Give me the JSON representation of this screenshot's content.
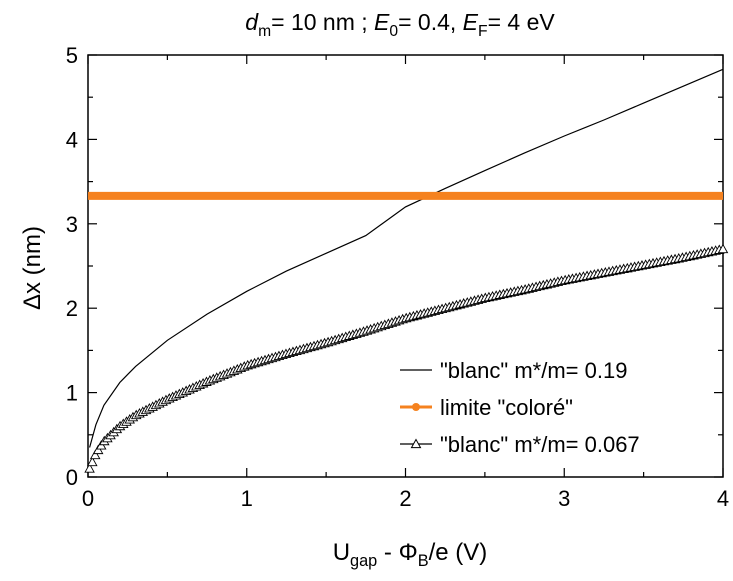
{
  "chart_data": {
    "type": "line",
    "title": {
      "parts": [
        {
          "text": "d",
          "style": "italic"
        },
        {
          "text": "m",
          "style": "sub"
        },
        {
          "text": "= 10 nm ;  ",
          "style": "normal"
        },
        {
          "text": "E",
          "style": "italic"
        },
        {
          "text": "0",
          "style": "sub"
        },
        {
          "text": "= 0.4, ",
          "style": "normal"
        },
        {
          "text": "E",
          "style": "italic"
        },
        {
          "text": "F",
          "style": "sub"
        },
        {
          "text": "= 4 eV",
          "style": "normal"
        }
      ]
    },
    "xlabel": {
      "parts": [
        {
          "text": "U",
          "style": "normal"
        },
        {
          "text": "gap",
          "style": "sub"
        },
        {
          "text": " - Φ",
          "style": "normal"
        },
        {
          "text": "B",
          "style": "sub"
        },
        {
          "text": "/e   (V)",
          "style": "normal"
        }
      ]
    },
    "ylabel": "Δx (nm)",
    "xlim": [
      0,
      4
    ],
    "ylim": [
      0,
      5
    ],
    "xticks": [
      "0",
      "1",
      "2",
      "3",
      "4"
    ],
    "yticks": [
      "0",
      "1",
      "2",
      "3",
      "4",
      "5"
    ],
    "grid": false,
    "legend_position": "bottom-right",
    "series": [
      {
        "name": "\"blanc\" m*/m= 0.19",
        "style": "thin-line",
        "color": "#000000",
        "x": [
          0.01,
          0.05,
          0.1,
          0.2,
          0.3,
          0.5,
          0.75,
          1.0,
          1.25,
          1.5,
          1.75,
          2.0,
          2.25,
          2.5,
          2.75,
          3.0,
          3.25,
          3.5,
          3.75,
          4.0
        ],
        "y": [
          0.35,
          0.62,
          0.85,
          1.12,
          1.31,
          1.62,
          1.93,
          2.2,
          2.44,
          2.65,
          2.86,
          3.2,
          3.42,
          3.63,
          3.84,
          4.04,
          4.23,
          4.43,
          4.63,
          4.83
        ]
      },
      {
        "name": "limite \"coloré\"",
        "style": "thick-line-circle-marker",
        "color": "#f5821f",
        "x": [
          0,
          4
        ],
        "y": [
          3.33,
          3.33
        ]
      },
      {
        "name": "\"blanc\" m*/m= 0.067",
        "style": "line-triangle-markers",
        "color": "#000000",
        "x": [
          0.01,
          0.05,
          0.1,
          0.2,
          0.3,
          0.5,
          0.75,
          1.0,
          1.25,
          1.5,
          1.75,
          2.0,
          2.25,
          2.5,
          2.75,
          3.0,
          3.25,
          3.5,
          3.75,
          4.0
        ],
        "y": [
          0.1,
          0.28,
          0.42,
          0.6,
          0.73,
          0.92,
          1.13,
          1.32,
          1.46,
          1.59,
          1.73,
          1.88,
          2.0,
          2.12,
          2.22,
          2.33,
          2.42,
          2.51,
          2.6,
          2.7
        ]
      }
    ]
  }
}
